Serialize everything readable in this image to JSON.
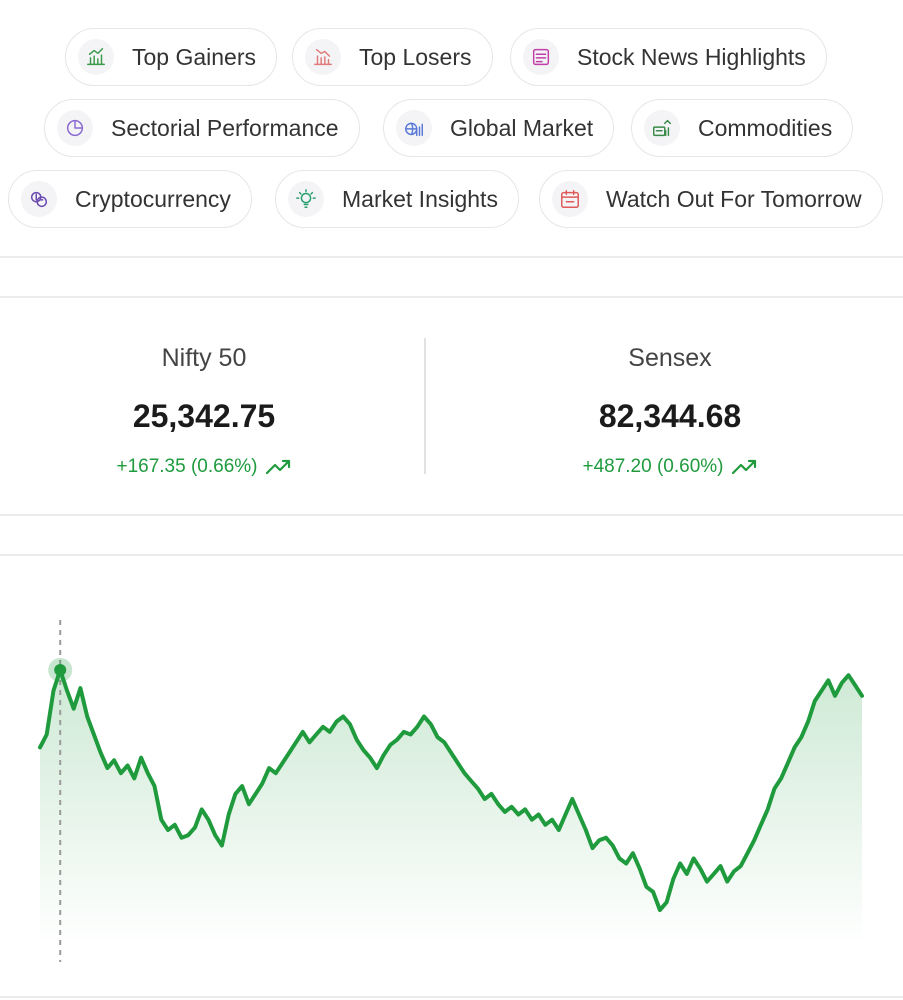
{
  "nav_chips": [
    {
      "label": "Top Gainers",
      "icon": "gainers-icon",
      "accent": "#3a9a4a"
    },
    {
      "label": "Top Losers",
      "icon": "losers-icon",
      "accent": "#e07a7a"
    },
    {
      "label": "Stock News Highlights",
      "icon": "news-icon",
      "accent": "#c040a8"
    },
    {
      "label": "Sectorial Performance",
      "icon": "sector-icon",
      "accent": "#8a6ad0"
    },
    {
      "label": "Global Market",
      "icon": "globe-icon",
      "accent": "#5a7ad8"
    },
    {
      "label": "Commodities",
      "icon": "commodities-icon",
      "accent": "#3a8a4a"
    },
    {
      "label": "Cryptocurrency",
      "icon": "crypto-icon",
      "accent": "#6a4ab0"
    },
    {
      "label": "Market Insights",
      "icon": "insights-icon",
      "accent": "#2aa070"
    },
    {
      "label": "Watch Out For Tomorrow",
      "icon": "calendar-icon",
      "accent": "#e05a5a"
    }
  ],
  "indices": [
    {
      "name": "Nifty 50",
      "value": "25,342.75",
      "change": "+167.35 (0.66%)"
    },
    {
      "name": "Sensex",
      "value": "82,344.68",
      "change": "+487.20 (0.60%)"
    }
  ],
  "colors": {
    "positive": "#1f9b3e",
    "line": "#1f9b3e"
  },
  "chart_data": {
    "type": "line",
    "title": "",
    "xlabel": "",
    "ylabel": "",
    "grid": false,
    "series": [
      {
        "values": [
          0.4,
          0.45,
          0.62,
          0.7,
          0.62,
          0.55,
          0.63,
          0.52,
          0.45,
          0.38,
          0.32,
          0.35,
          0.3,
          0.33,
          0.28,
          0.36,
          0.3,
          0.25,
          0.12,
          0.08,
          0.1,
          0.05,
          0.06,
          0.09,
          0.16,
          0.12,
          0.06,
          0.02,
          0.14,
          0.22,
          0.25,
          0.18,
          0.22,
          0.26,
          0.32,
          0.3,
          0.34,
          0.38,
          0.42,
          0.46,
          0.42,
          0.45,
          0.48,
          0.46,
          0.5,
          0.52,
          0.49,
          0.43,
          0.39,
          0.36,
          0.32,
          0.37,
          0.41,
          0.43,
          0.46,
          0.45,
          0.48,
          0.52,
          0.49,
          0.44,
          0.42,
          0.38,
          0.34,
          0.3,
          0.27,
          0.24,
          0.2,
          0.22,
          0.18,
          0.15,
          0.17,
          0.14,
          0.16,
          0.12,
          0.14,
          0.1,
          0.12,
          0.08,
          0.14,
          0.2,
          0.14,
          0.08,
          0.01,
          0.04,
          0.05,
          0.02,
          -0.03,
          -0.05,
          -0.01,
          -0.07,
          -0.14,
          -0.16,
          -0.23,
          -0.2,
          -0.11,
          -0.05,
          -0.09,
          -0.03,
          -0.07,
          -0.12,
          -0.09,
          -0.06,
          -0.12,
          -0.08,
          -0.06,
          -0.01,
          0.04,
          0.1,
          0.16,
          0.24,
          0.28,
          0.34,
          0.4,
          0.44,
          0.5,
          0.58,
          0.62,
          0.66,
          0.6,
          0.65,
          0.68,
          0.64,
          0.6
        ]
      }
    ]
  }
}
